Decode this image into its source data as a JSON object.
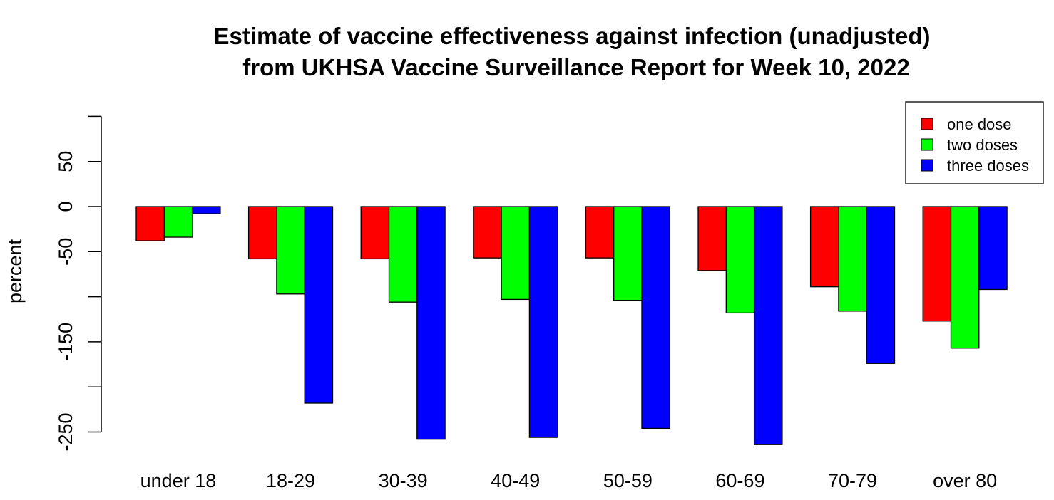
{
  "chart_data": {
    "type": "bar",
    "title_lines": [
      "Estimate of vaccine effectiveness against infection (unadjusted)",
      "from UKHSA Vaccine Surveillance Report for Week 10, 2022"
    ],
    "xlabel": "",
    "ylabel": "percent",
    "ylim": [
      -250,
      100
    ],
    "yticks": [
      50,
      0,
      -50,
      -150,
      -250
    ],
    "grid": false,
    "legend_position": "top-right",
    "categories": [
      "under 18",
      "18-29",
      "30-39",
      "40-49",
      "50-59",
      "60-69",
      "70-79",
      "over 80"
    ],
    "series": [
      {
        "name": "one dose",
        "color": "#ff0000",
        "values": [
          -38,
          -58,
          -58,
          -57,
          -57,
          -71,
          -89,
          -127
        ]
      },
      {
        "name": "two doses",
        "color": "#00ff00",
        "values": [
          -34,
          -97,
          -106,
          -103,
          -104,
          -118,
          -116,
          -157
        ]
      },
      {
        "name": "three doses",
        "color": "#0000ff",
        "values": [
          -8,
          -218,
          -258,
          -256,
          -246,
          -264,
          -174,
          -92
        ]
      }
    ]
  }
}
